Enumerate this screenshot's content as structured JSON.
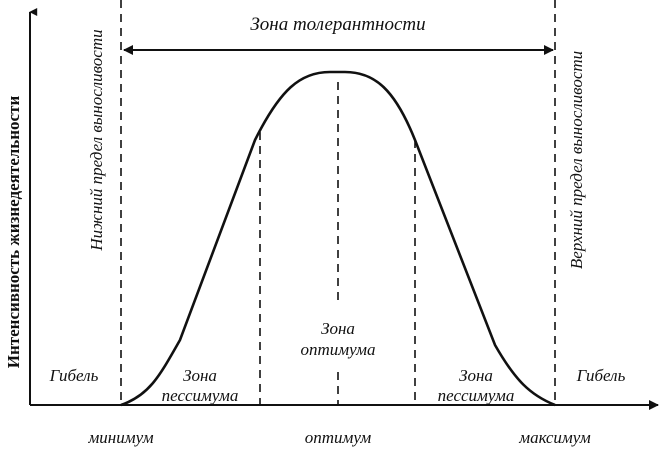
{
  "axes": {
    "y_label": "Интенсивность жизнедеятельности"
  },
  "tolerance_zone": "Зона толерантности",
  "lower_limit": "Нижний предел выносливости",
  "upper_limit": "Верхний предел выносливости",
  "death_left": "Гибель",
  "death_right": "Гибель",
  "pessimum_left": [
    "Зона",
    "пессимума"
  ],
  "pessimum_right": [
    "Зона",
    "пессимума"
  ],
  "optimum_zone": [
    "Зона",
    "оптимума"
  ],
  "x_labels": {
    "minimum": "минимум",
    "optimum": "оптимум",
    "maximum": "максимум"
  }
}
